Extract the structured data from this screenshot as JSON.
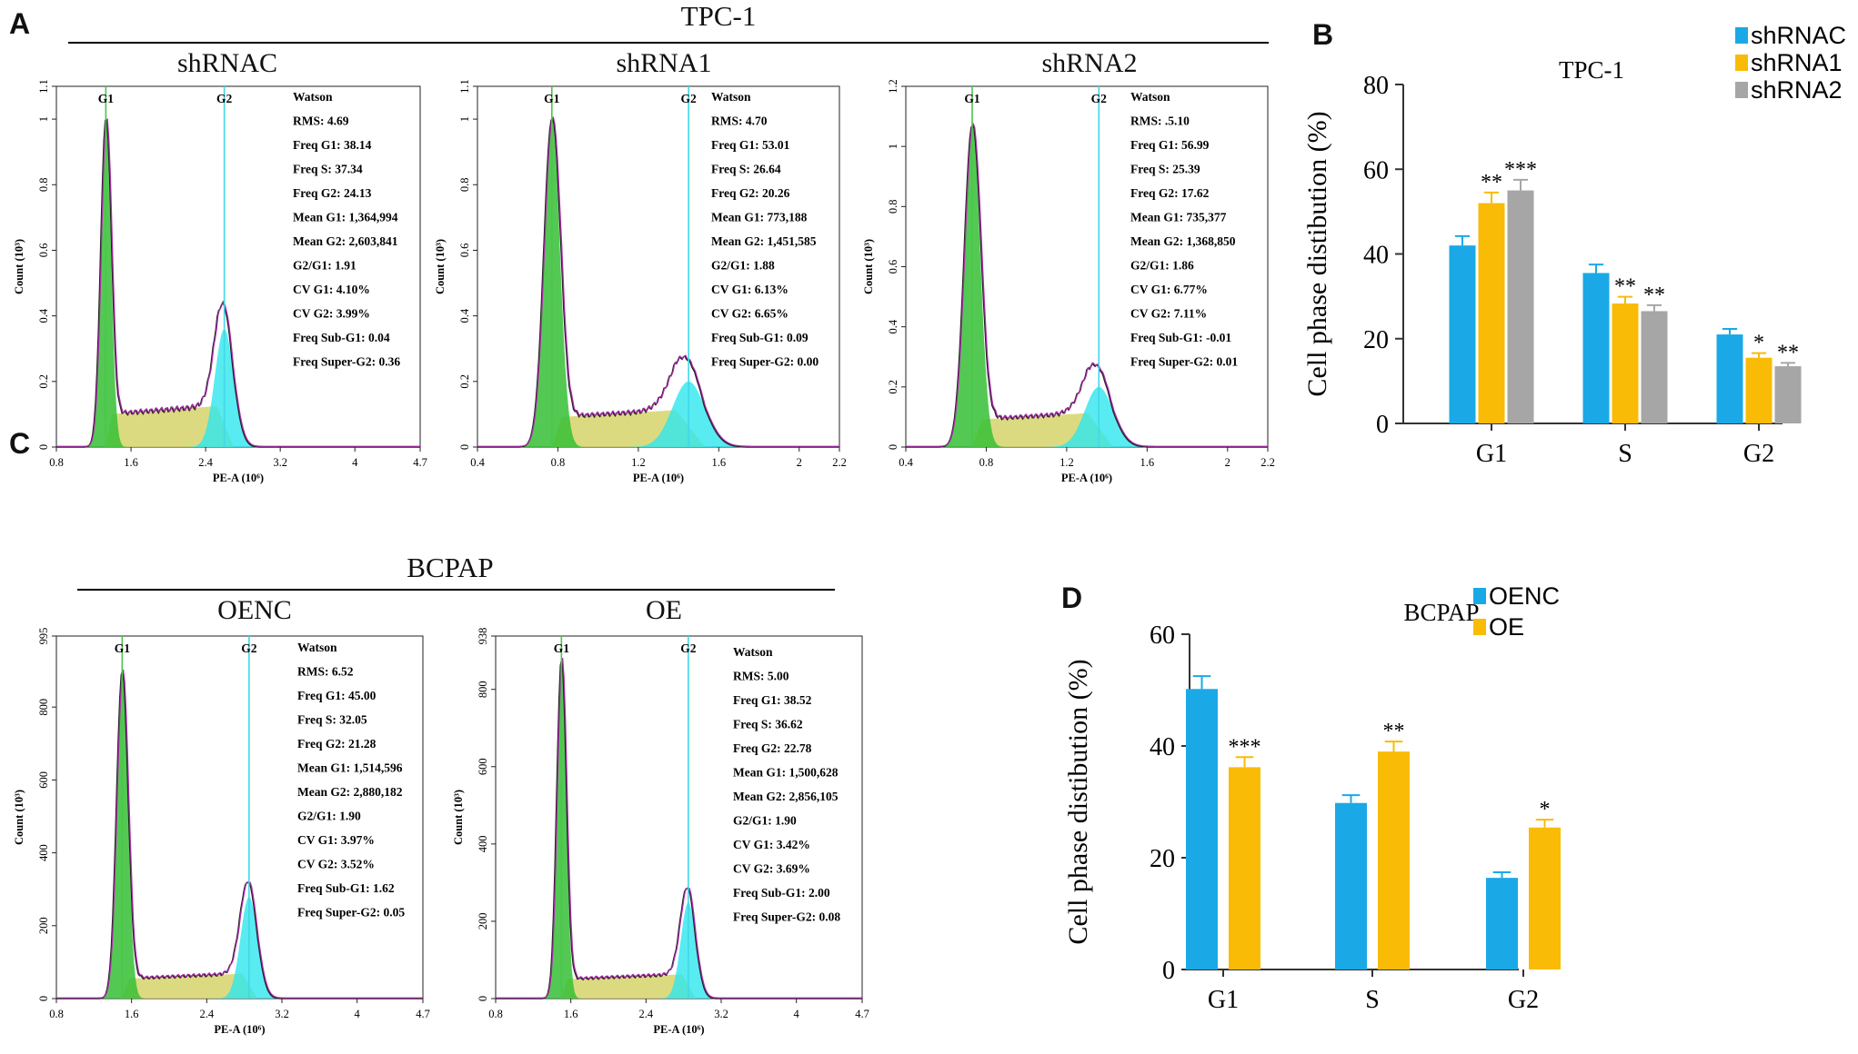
{
  "panels": {
    "A": "A",
    "B": "B",
    "C": "C",
    "D": "D"
  },
  "groups": {
    "top": "TPC-1",
    "bottom": "BCPAP"
  },
  "histograms": [
    {
      "title": "shRNAC",
      "ymax_label": "1.1",
      "yticks": [
        "0",
        "0.2",
        "0.4",
        "0.6",
        "0.8",
        "1",
        "1.1"
      ],
      "ytick_values": [
        0,
        0.2,
        0.4,
        0.6,
        0.8,
        1.0,
        1.1
      ],
      "ymax": 1.1,
      "xticks": [
        "0.8",
        "1.6",
        "2.4",
        "3.2",
        "4",
        "4.7"
      ],
      "xtick_values": [
        0.8,
        1.6,
        2.4,
        3.2,
        4.0,
        4.7
      ],
      "xmin": 0.8,
      "xmax": 4.7,
      "xlabel": "PE-A (10⁶)",
      "ylabel": "Count (10³)",
      "g1_pos": 1.33,
      "g2_pos": 2.6,
      "g1_peak": 1.0,
      "g2_peak": 0.36,
      "s_level": 0.11,
      "g1_sd": 0.055,
      "g2_sd": 0.1,
      "peak_labels": [
        "G1",
        "G2"
      ],
      "stats": [
        "Watson",
        "RMS: 4.69",
        "Freq G1: 38.14",
        "Freq S: 37.34",
        "Freq G2:  24.13",
        "Mean G1: 1,364,994",
        "Mean G2: 2,603,841",
        "G2/G1: 1.91",
        "CV G1: 4.10%",
        "CV G2: 3.99%",
        "Freq Sub-G1: 0.04",
        "Freq Super-G2: 0.36"
      ]
    },
    {
      "title": "shRNA1",
      "ymax_label": "1.1",
      "yticks": [
        "0",
        "0.2",
        "0.4",
        "0.6",
        "0.8",
        "1",
        "1.1"
      ],
      "ytick_values": [
        0,
        0.2,
        0.4,
        0.6,
        0.8,
        1.0,
        1.1
      ],
      "ymax": 1.1,
      "xticks": [
        "0.4",
        "0.8",
        "1.2",
        "1.6",
        "2",
        "2.2"
      ],
      "xtick_values": [
        0.4,
        0.8,
        1.2,
        1.6,
        2.0,
        2.2
      ],
      "xmin": 0.4,
      "xmax": 2.2,
      "xlabel": "PE-A (10⁶)",
      "ylabel": "Count (10³)",
      "g1_pos": 0.77,
      "g2_pos": 1.45,
      "g1_peak": 1.0,
      "g2_peak": 0.2,
      "s_level": 0.1,
      "g1_sd": 0.04,
      "g2_sd": 0.08,
      "peak_labels": [
        "G1",
        "G2"
      ],
      "stats": [
        "Watson",
        "RMS:  4.70",
        "Freq G1:  53.01",
        "Freq S:  26.64",
        "Freq G2:  20.26",
        "Mean G1: 773,188",
        "Mean G2: 1,451,585",
        "G2/G1: 1.88",
        "CV G1: 6.13%",
        "CV G2: 6.65%",
        "Freq Sub-G1: 0.09",
        "Freq Super-G2: 0.00"
      ]
    },
    {
      "title": "shRNA2",
      "ymax_label": "1.2",
      "yticks": [
        "0",
        "0.2",
        "0.4",
        "0.6",
        "0.8",
        "1",
        "1.2"
      ],
      "ytick_values": [
        0,
        0.2,
        0.4,
        0.6,
        0.8,
        1.0,
        1.2
      ],
      "ymax": 1.2,
      "xticks": [
        "0.4",
        "0.8",
        "1.2",
        "1.6",
        "2",
        "2.2"
      ],
      "xtick_values": [
        0.4,
        0.8,
        1.2,
        1.6,
        2.0,
        2.2
      ],
      "xmin": 0.4,
      "xmax": 2.2,
      "xlabel": "PE-A (10⁶)",
      "ylabel": "Count (10³)",
      "g1_pos": 0.73,
      "g2_pos": 1.36,
      "g1_peak": 1.07,
      "g2_peak": 0.2,
      "s_level": 0.1,
      "g1_sd": 0.04,
      "g2_sd": 0.07,
      "peak_labels": [
        "G1",
        "G2"
      ],
      "stats": [
        "Watson",
        "RMS: .5.10",
        "Freq G1:  56.99",
        "Freq S:  25.39",
        "Freq G2:  17.62",
        "Mean G1: 735,377",
        "Mean G2: 1,368,850",
        "G2/G1: 1.86",
        "CV G1: 6.77%",
        "CV G2: 7.11%",
        "Freq Sub-G1: -0.01",
        "Freq Super-G2: 0.01"
      ]
    },
    {
      "title": "OENC",
      "ymax_label": "995",
      "yticks": [
        "0",
        "200",
        "400",
        "600",
        "800",
        "995"
      ],
      "ytick_values": [
        0,
        200,
        400,
        600,
        800,
        995
      ],
      "ymax": 995,
      "xticks": [
        "0.8",
        "1.6",
        "2.4",
        "3.2",
        "4",
        "4.7"
      ],
      "xtick_values": [
        0.8,
        1.6,
        2.4,
        3.2,
        4.0,
        4.7
      ],
      "xmin": 0.8,
      "xmax": 4.7,
      "xlabel": "PE-A (10⁶)",
      "ylabel": "Count (10³)",
      "g1_pos": 1.5,
      "g2_pos": 2.85,
      "g1_peak": 900,
      "g2_peak": 280,
      "s_level": 60,
      "g1_sd": 0.06,
      "g2_sd": 0.09,
      "peak_labels": [
        "G1",
        "G2"
      ],
      "stats": [
        "Watson",
        "RMS: 6.52",
        "Freq G1: 45.00",
        "Freq S: 32.05",
        "Freq G2: 21.28",
        "Mean G1: 1,514,596",
        "Mean G2: 2,880,182",
        "G2/G1: 1.90",
        "CV G1: 3.97%",
        "CV G2: 3.52%",
        "Freq Sub-G1: 1.62",
        "Freq Super-G2: 0.05"
      ]
    },
    {
      "title": "OE",
      "ymax_label": "938",
      "yticks": [
        "0",
        "200",
        "400",
        "600",
        "800",
        "938"
      ],
      "ytick_values": [
        0,
        200,
        400,
        600,
        800,
        938
      ],
      "ymax": 938,
      "xticks": [
        "0.8",
        "1.6",
        "2.4",
        "3.2",
        "4",
        "4.7"
      ],
      "xtick_values": [
        0.8,
        1.6,
        2.4,
        3.2,
        4.0,
        4.7
      ],
      "xmin": 0.8,
      "xmax": 4.7,
      "xlabel": "PE-A (10⁶)",
      "ylabel": "Count (10³)",
      "g1_pos": 1.5,
      "g2_pos": 2.85,
      "g1_peak": 880,
      "g2_peak": 250,
      "s_level": 55,
      "g1_sd": 0.05,
      "g2_sd": 0.08,
      "peak_labels": [
        "G1",
        "G2"
      ],
      "stats": [
        "Watson",
        "RMS: 5.00",
        "Freq G1:  38.52",
        "Freq S: 36.62",
        "Freq G2:  22.78",
        "Mean G1: 1,500,628",
        "Mean G2: 2,856,105",
        "G2/G1: 1.90",
        "CV G1: 3.42%",
        "CV G2: 3.69%",
        "Freq Sub-G1: 2.00",
        "Freq Super-G2: 0.08"
      ]
    }
  ],
  "chart_data": [
    {
      "type": "bar",
      "title": "TPC-1",
      "categories": [
        "G1",
        "S",
        "G2"
      ],
      "ylabel": "Cell phase distibution (%)",
      "ylim": [
        0,
        80
      ],
      "yticks": [
        "0",
        "20",
        "40",
        "60",
        "80"
      ],
      "series": [
        {
          "name": "shRNAC",
          "color": "#1aa9e6",
          "values": [
            42,
            35.5,
            21
          ],
          "errors": [
            2.2,
            2.0,
            1.3
          ],
          "stars": [
            "",
            "",
            ""
          ]
        },
        {
          "name": "shRNA1",
          "color": "#f9bb06",
          "values": [
            52,
            28.3,
            15.5
          ],
          "errors": [
            2.5,
            1.6,
            1.1
          ],
          "stars": [
            "**",
            "**",
            "*"
          ]
        },
        {
          "name": "shRNA2",
          "color": "#a6a6a6",
          "values": [
            55,
            26.5,
            13.5
          ],
          "errors": [
            2.5,
            1.4,
            0.8
          ],
          "stars": [
            "***",
            "**",
            "**"
          ]
        }
      ],
      "legend": "top-right"
    },
    {
      "type": "bar",
      "title": "BCPAP",
      "categories": [
        "G1",
        "S",
        "G2"
      ],
      "ylabel": "Cell phase distibution (%)",
      "ylim": [
        0,
        60
      ],
      "yticks": [
        "0",
        "20",
        "40",
        "60"
      ],
      "series": [
        {
          "name": "OENC",
          "color": "#1aa9e6",
          "values": [
            50.2,
            29.8,
            16.4
          ],
          "errors": [
            2.3,
            1.4,
            1.0
          ],
          "stars": [
            "",
            "",
            ""
          ]
        },
        {
          "name": "OE",
          "color": "#f9bb06",
          "values": [
            36.2,
            39.0,
            25.4
          ],
          "errors": [
            1.8,
            1.8,
            1.4
          ],
          "stars": [
            "***",
            "**",
            "*"
          ]
        }
      ],
      "legend": "top-right"
    }
  ]
}
